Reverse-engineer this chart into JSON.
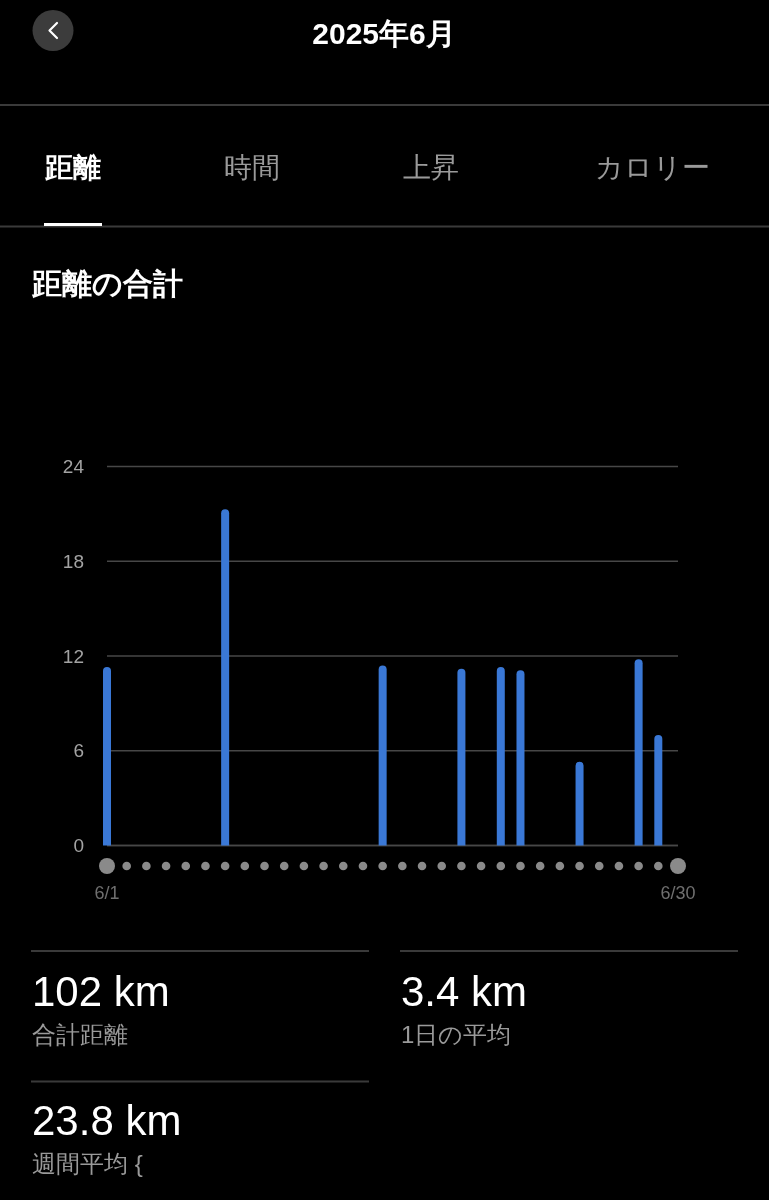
{
  "chart_data": {
    "type": "bar",
    "title": "距離の合計",
    "categories": [
      "6/1",
      null,
      null,
      null,
      null,
      null,
      null,
      null,
      null,
      null,
      null,
      null,
      null,
      null,
      null,
      null,
      null,
      null,
      null,
      null,
      null,
      null,
      null,
      null,
      null,
      null,
      null,
      null,
      null,
      "6/30"
    ],
    "values": [
      11.3,
      null,
      null,
      null,
      null,
      null,
      21.3,
      null,
      null,
      null,
      null,
      null,
      null,
      null,
      11.4,
      null,
      null,
      null,
      11.2,
      null,
      11.3,
      11.1,
      null,
      null,
      5.3,
      null,
      null,
      11.8,
      7.0,
      null
    ],
    "color": "#3a78d6",
    "ylim": [
      0,
      24
    ],
    "yticks": [
      0,
      6,
      12,
      18,
      24
    ],
    "grid": "y",
    "annotations": [
      "2025年6月",
      "距離",
      "時間",
      "上昇",
      "カロリー",
      "102 km",
      "合計距離",
      "3.4 km",
      "1日の平均",
      "23.8 km",
      "週間平均 {"
    ]
  }
}
